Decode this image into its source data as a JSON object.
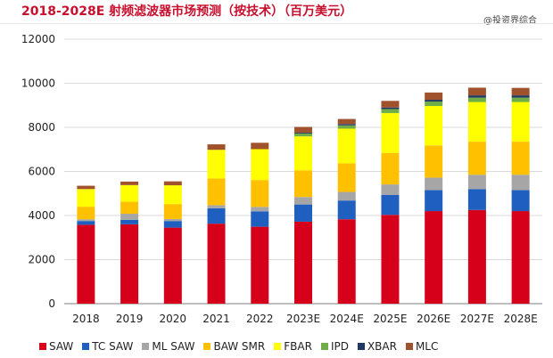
{
  "title": "2018-2028E 射频滤波器市场预测（按技术）（百万美元）",
  "source": "@投资界综合",
  "chart_data": {
    "type": "bar",
    "stacked": true,
    "categories": [
      "2018",
      "2019",
      "2020",
      "2021",
      "2022",
      "2023E",
      "2024E",
      "2025E",
      "2026E",
      "2027E",
      "2028E"
    ],
    "ylim": [
      0,
      12000
    ],
    "yticks": [
      0,
      2000,
      4000,
      6000,
      8000,
      10000,
      12000
    ],
    "grid": true,
    "legend_position": "bottom",
    "series": [
      {
        "name": "SAW",
        "color": "#d7001a",
        "values": [
          3580,
          3600,
          3450,
          3630,
          3490,
          3720,
          3830,
          4030,
          4200,
          4250,
          4200
        ]
      },
      {
        "name": "TC SAW",
        "color": "#1f5fbf",
        "values": [
          170,
          200,
          300,
          700,
          700,
          780,
          850,
          900,
          950,
          950,
          950
        ]
      },
      {
        "name": "ML SAW",
        "color": "#a6a6a6",
        "values": [
          80,
          280,
          90,
          140,
          200,
          340,
          390,
          480,
          570,
          650,
          700
        ]
      },
      {
        "name": "BAW SMR",
        "color": "#ffc000",
        "values": [
          570,
          550,
          680,
          1210,
          1220,
          1210,
          1300,
          1430,
          1460,
          1500,
          1500
        ]
      },
      {
        "name": "FBAR",
        "color": "#ffff00",
        "values": [
          800,
          750,
          850,
          1300,
          1400,
          1540,
          1570,
          1810,
          1790,
          1800,
          1800
        ]
      },
      {
        "name": "IPD",
        "color": "#70ad47",
        "values": [
          0,
          0,
          0,
          0,
          0,
          130,
          150,
          180,
          200,
          200,
          200
        ]
      },
      {
        "name": "XBAR",
        "color": "#203864",
        "values": [
          0,
          0,
          0,
          0,
          0,
          40,
          60,
          70,
          80,
          100,
          100
        ]
      },
      {
        "name": "MLC",
        "color": "#a0522d",
        "values": [
          150,
          160,
          180,
          250,
          290,
          260,
          230,
          300,
          330,
          350,
          340
        ]
      }
    ]
  }
}
